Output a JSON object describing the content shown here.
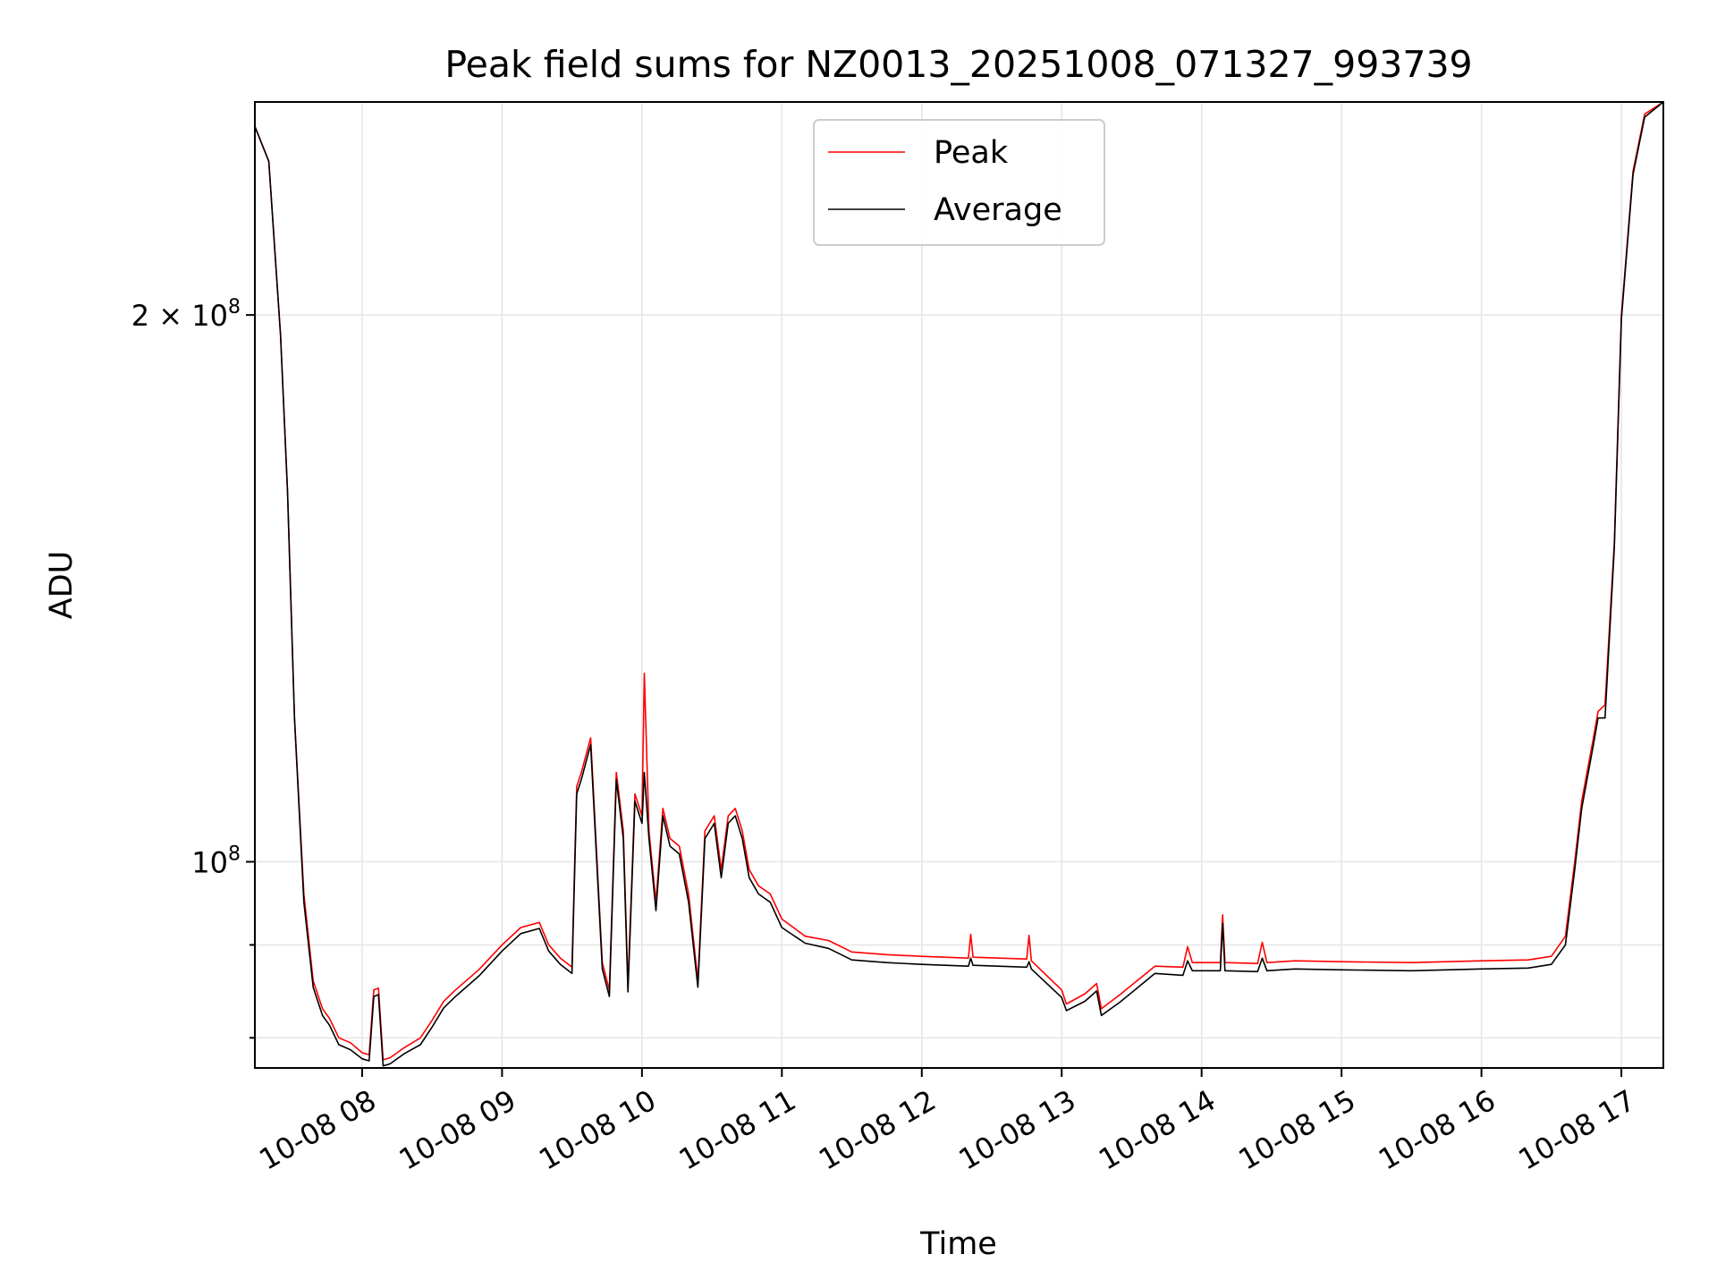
{
  "chart_data": {
    "type": "line",
    "title": "Peak field sums for NZ0013_20251008_071327_993739",
    "xlabel": "Time",
    "ylabel": "ADU",
    "x_ticks": [
      "10-08 08",
      "10-08 09",
      "10-08 10",
      "10-08 11",
      "10-08 12",
      "10-08 13",
      "10-08 14",
      "10-08 15",
      "10-08 16",
      "10-08 17"
    ],
    "x_tick_dates": [
      "2025-10-08T08:00",
      "2025-10-08T09:00",
      "2025-10-08T10:00",
      "2025-10-08T11:00",
      "2025-10-08T12:00",
      "2025-10-08T13:00",
      "2025-10-08T14:00",
      "2025-10-08T15:00",
      "2025-10-08T16:00",
      "2025-10-08T17:00"
    ],
    "xlim": [
      "2025-10-08T07:14",
      "2025-10-08T17:18"
    ],
    "y_scale": "log",
    "ylim": [
      77000000,
      262000000
    ],
    "y_major_ticks": [
      {
        "value": 100000000,
        "label_base": "10",
        "label_exp": "8"
      },
      {
        "value": 200000000,
        "label_base": "2 × 10",
        "label_exp": "8"
      }
    ],
    "y_minor_ticks": [
      80000000,
      90000000
    ],
    "grid": true,
    "legend_position": "upper-center",
    "series": [
      {
        "name": "Peak",
        "color": "#ff0000",
        "x": [
          "2025-10-08T07:14",
          "2025-10-08T07:20",
          "2025-10-08T07:25",
          "2025-10-08T07:28",
          "2025-10-08T07:31",
          "2025-10-08T07:35",
          "2025-10-08T07:39",
          "2025-10-08T07:43",
          "2025-10-08T07:46",
          "2025-10-08T07:50",
          "2025-10-08T07:55",
          "2025-10-08T08:00",
          "2025-10-08T08:03",
          "2025-10-08T08:05",
          "2025-10-08T08:07",
          "2025-10-08T08:09",
          "2025-10-08T08:12",
          "2025-10-08T08:18",
          "2025-10-08T08:25",
          "2025-10-08T08:30",
          "2025-10-08T08:35",
          "2025-10-08T08:40",
          "2025-10-08T08:50",
          "2025-10-08T09:00",
          "2025-10-08T09:08",
          "2025-10-08T09:16",
          "2025-10-08T09:20",
          "2025-10-08T09:25",
          "2025-10-08T09:30",
          "2025-10-08T09:32",
          "2025-10-08T09:34",
          "2025-10-08T09:38",
          "2025-10-08T09:43",
          "2025-10-08T09:46",
          "2025-10-08T09:49",
          "2025-10-08T09:52",
          "2025-10-08T09:54",
          "2025-10-08T09:57",
          "2025-10-08T10:00",
          "2025-10-08T10:01",
          "2025-10-08T10:03",
          "2025-10-08T10:06",
          "2025-10-08T10:09",
          "2025-10-08T10:12",
          "2025-10-08T10:16",
          "2025-10-08T10:20",
          "2025-10-08T10:24",
          "2025-10-08T10:27",
          "2025-10-08T10:31",
          "2025-10-08T10:34",
          "2025-10-08T10:37",
          "2025-10-08T10:40",
          "2025-10-08T10:43",
          "2025-10-08T10:46",
          "2025-10-08T10:50",
          "2025-10-08T10:55",
          "2025-10-08T11:00",
          "2025-10-08T11:10",
          "2025-10-08T11:20",
          "2025-10-08T11:30",
          "2025-10-08T11:45",
          "2025-10-08T12:00",
          "2025-10-08T12:20",
          "2025-10-08T12:21",
          "2025-10-08T12:22",
          "2025-10-08T12:45",
          "2025-10-08T12:46",
          "2025-10-08T12:47",
          "2025-10-08T13:00",
          "2025-10-08T13:02",
          "2025-10-08T13:10",
          "2025-10-08T13:15",
          "2025-10-08T13:17",
          "2025-10-08T13:25",
          "2025-10-08T13:40",
          "2025-10-08T13:52",
          "2025-10-08T13:54",
          "2025-10-08T13:56",
          "2025-10-08T14:08",
          "2025-10-08T14:09",
          "2025-10-08T14:10",
          "2025-10-08T14:24",
          "2025-10-08T14:26",
          "2025-10-08T14:28",
          "2025-10-08T14:40",
          "2025-10-08T15:00",
          "2025-10-08T15:30",
          "2025-10-08T16:00",
          "2025-10-08T16:20",
          "2025-10-08T16:30",
          "2025-10-08T16:36",
          "2025-10-08T16:40",
          "2025-10-08T16:43",
          "2025-10-08T16:48",
          "2025-10-08T16:50",
          "2025-10-08T16:53",
          "2025-10-08T16:57",
          "2025-10-08T17:00",
          "2025-10-08T17:05",
          "2025-10-08T17:10",
          "2025-10-08T17:18"
        ],
        "y": [
          254000000,
          243000000,
          195000000,
          160000000,
          120000000,
          96000000,
          86000000,
          83000000,
          82000000,
          80000000,
          79500000,
          78500000,
          78300000,
          85000000,
          85200000,
          77800000,
          78000000,
          79000000,
          80000000,
          81800000,
          83800000,
          85000000,
          87200000,
          90000000,
          92000000,
          92600000,
          90000000,
          88500000,
          87500000,
          110000000,
          112000000,
          117000000,
          88000000,
          85000000,
          112000000,
          104000000,
          85500000,
          109000000,
          106000000,
          127000000,
          104000000,
          95000000,
          107000000,
          103000000,
          102000000,
          96000000,
          86000000,
          104000000,
          106000000,
          99000000,
          106000000,
          107000000,
          104000000,
          99000000,
          97000000,
          96000000,
          93000000,
          91000000,
          90500000,
          89200000,
          88900000,
          88700000,
          88500000,
          91200000,
          88600000,
          88400000,
          91100000,
          88200000,
          85000000,
          83500000,
          84600000,
          85700000,
          83000000,
          84500000,
          87600000,
          87500000,
          89800000,
          88000000,
          88000000,
          93500000,
          88000000,
          87900000,
          90300000,
          88000000,
          88200000,
          88100000,
          88000000,
          88200000,
          88300000,
          88700000,
          91000000,
          100000000,
          108000000,
          117000000,
          121000000,
          122000000,
          150000000,
          200000000,
          240000000,
          258000000,
          262000000
        ]
      },
      {
        "name": "Average",
        "color": "#000000",
        "x": [
          "2025-10-08T07:14",
          "2025-10-08T07:20",
          "2025-10-08T07:25",
          "2025-10-08T07:28",
          "2025-10-08T07:31",
          "2025-10-08T07:35",
          "2025-10-08T07:39",
          "2025-10-08T07:43",
          "2025-10-08T07:46",
          "2025-10-08T07:50",
          "2025-10-08T07:55",
          "2025-10-08T08:00",
          "2025-10-08T08:03",
          "2025-10-08T08:05",
          "2025-10-08T08:07",
          "2025-10-08T08:09",
          "2025-10-08T08:12",
          "2025-10-08T08:18",
          "2025-10-08T08:25",
          "2025-10-08T08:30",
          "2025-10-08T08:35",
          "2025-10-08T08:40",
          "2025-10-08T08:50",
          "2025-10-08T09:00",
          "2025-10-08T09:08",
          "2025-10-08T09:16",
          "2025-10-08T09:20",
          "2025-10-08T09:25",
          "2025-10-08T09:30",
          "2025-10-08T09:32",
          "2025-10-08T09:34",
          "2025-10-08T09:38",
          "2025-10-08T09:43",
          "2025-10-08T09:46",
          "2025-10-08T09:49",
          "2025-10-08T09:52",
          "2025-10-08T09:54",
          "2025-10-08T09:57",
          "2025-10-08T10:00",
          "2025-10-08T10:01",
          "2025-10-08T10:03",
          "2025-10-08T10:06",
          "2025-10-08T10:09",
          "2025-10-08T10:12",
          "2025-10-08T10:16",
          "2025-10-08T10:20",
          "2025-10-08T10:24",
          "2025-10-08T10:27",
          "2025-10-08T10:31",
          "2025-10-08T10:34",
          "2025-10-08T10:37",
          "2025-10-08T10:40",
          "2025-10-08T10:43",
          "2025-10-08T10:46",
          "2025-10-08T10:50",
          "2025-10-08T10:55",
          "2025-10-08T11:00",
          "2025-10-08T11:10",
          "2025-10-08T11:20",
          "2025-10-08T11:30",
          "2025-10-08T11:45",
          "2025-10-08T12:00",
          "2025-10-08T12:20",
          "2025-10-08T12:21",
          "2025-10-08T12:22",
          "2025-10-08T12:45",
          "2025-10-08T12:46",
          "2025-10-08T12:47",
          "2025-10-08T13:00",
          "2025-10-08T13:02",
          "2025-10-08T13:10",
          "2025-10-08T13:15",
          "2025-10-08T13:17",
          "2025-10-08T13:25",
          "2025-10-08T13:40",
          "2025-10-08T13:52",
          "2025-10-08T13:54",
          "2025-10-08T13:56",
          "2025-10-08T14:08",
          "2025-10-08T14:09",
          "2025-10-08T14:10",
          "2025-10-08T14:24",
          "2025-10-08T14:26",
          "2025-10-08T14:28",
          "2025-10-08T14:40",
          "2025-10-08T15:00",
          "2025-10-08T15:30",
          "2025-10-08T16:00",
          "2025-10-08T16:20",
          "2025-10-08T16:30",
          "2025-10-08T16:36",
          "2025-10-08T16:40",
          "2025-10-08T16:43",
          "2025-10-08T16:48",
          "2025-10-08T16:50",
          "2025-10-08T16:53",
          "2025-10-08T16:57",
          "2025-10-08T17:00",
          "2025-10-08T17:05",
          "2025-10-08T17:10",
          "2025-10-08T17:18"
        ],
        "y": [
          254000000,
          243000000,
          195000000,
          160000000,
          120000000,
          95000000,
          85300000,
          82300000,
          81300000,
          79300000,
          78800000,
          77900000,
          77700000,
          84300000,
          84500000,
          77200000,
          77400000,
          78400000,
          79300000,
          81100000,
          83100000,
          84300000,
          86500000,
          89300000,
          91300000,
          91900000,
          89300000,
          87800000,
          86800000,
          109000000,
          111000000,
          116000000,
          87300000,
          84300000,
          111000000,
          103000000,
          84800000,
          108000000,
          105000000,
          112000000,
          103000000,
          94000000,
          106000000,
          102000000,
          101000000,
          95000000,
          85300000,
          103000000,
          105000000,
          98000000,
          105000000,
          106000000,
          103000000,
          98000000,
          96000000,
          95000000,
          92000000,
          90200000,
          89600000,
          88300000,
          88000000,
          87800000,
          87600000,
          88500000,
          87700000,
          87500000,
          88100000,
          87300000,
          84200000,
          82800000,
          83800000,
          84900000,
          82300000,
          83700000,
          86800000,
          86600000,
          88200000,
          87100000,
          87100000,
          92500000,
          87100000,
          87000000,
          88500000,
          87100000,
          87300000,
          87200000,
          87100000,
          87300000,
          87400000,
          87800000,
          90000000,
          99000000,
          107000000,
          116000000,
          120000000,
          120000000,
          149000000,
          199000000,
          239000000,
          257000000,
          262000000
        ]
      }
    ]
  }
}
